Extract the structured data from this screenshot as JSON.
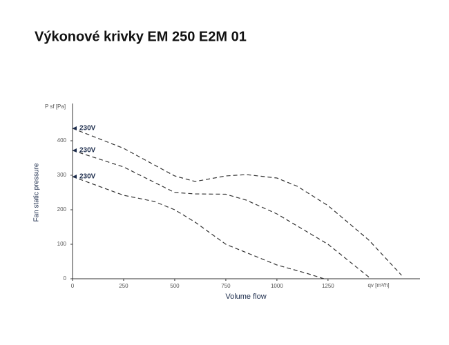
{
  "chart_data": {
    "type": "line",
    "title": "Výkonové krivky EM 250 E2M 01",
    "xlabel": "Volume flow",
    "ylabel": "Fan static pressure",
    "y_unit_label": "P sf [Pa]",
    "x_unit_label": "qv [m³/h]",
    "xlim": [
      0,
      1700
    ],
    "ylim": [
      0,
      500
    ],
    "xticks": [
      0,
      250,
      500,
      750,
      1000,
      1250
    ],
    "yticks": [
      0,
      100,
      200,
      300,
      400
    ],
    "series": [
      {
        "name": "230V",
        "color": "#333333",
        "x": [
          0,
          250,
          500,
          600,
          750,
          850,
          1000,
          1100,
          1250,
          1450,
          1610
        ],
        "values": [
          436,
          378,
          298,
          282,
          298,
          302,
          292,
          268,
          212,
          112,
          10
        ]
      },
      {
        "name": "230V",
        "color": "#333333",
        "x": [
          0,
          250,
          500,
          600,
          750,
          850,
          1000,
          1250,
          1460
        ],
        "values": [
          372,
          324,
          250,
          246,
          245,
          228,
          188,
          100,
          0
        ]
      },
      {
        "name": "230V",
        "color": "#333333",
        "x": [
          0,
          250,
          400,
          500,
          600,
          750,
          1000,
          1150,
          1230
        ],
        "values": [
          296,
          242,
          224,
          200,
          164,
          100,
          40,
          15,
          0
        ]
      }
    ]
  }
}
